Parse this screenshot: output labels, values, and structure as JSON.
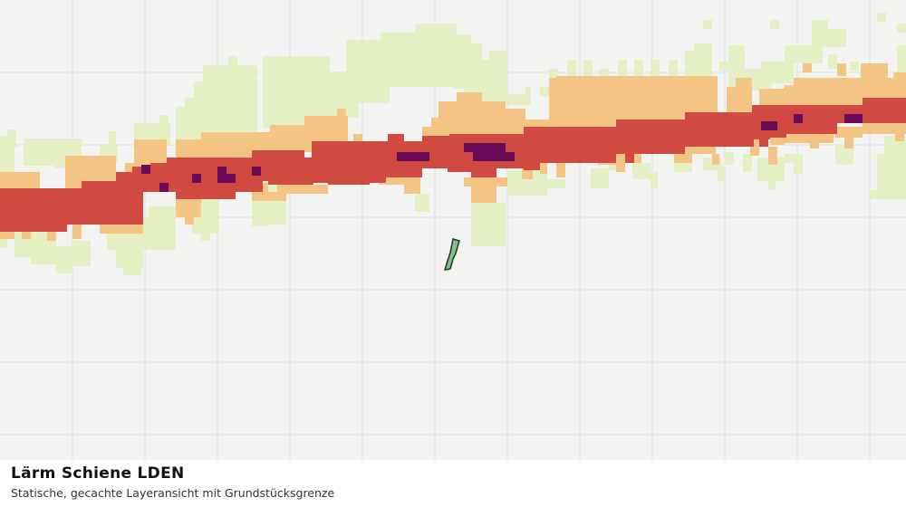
{
  "map": {
    "layer": "Lärm Schiene LDEN",
    "legend_colors": {
      "band_outer": "#e4efc4",
      "band_mid": "#f3c484",
      "band_inner": "#d14a41",
      "band_core": "#6c0b59",
      "parcel_fill": "#7fbf8a",
      "parcel_stroke": "#1e3a22",
      "grid": "#dcdedb",
      "background": "#f3f4f2"
    }
  },
  "caption": {
    "title": "Lärm Schiene LDEN",
    "subtitle": "Statische, gecachte Layeransicht mit Grundstücksgrenze"
  }
}
